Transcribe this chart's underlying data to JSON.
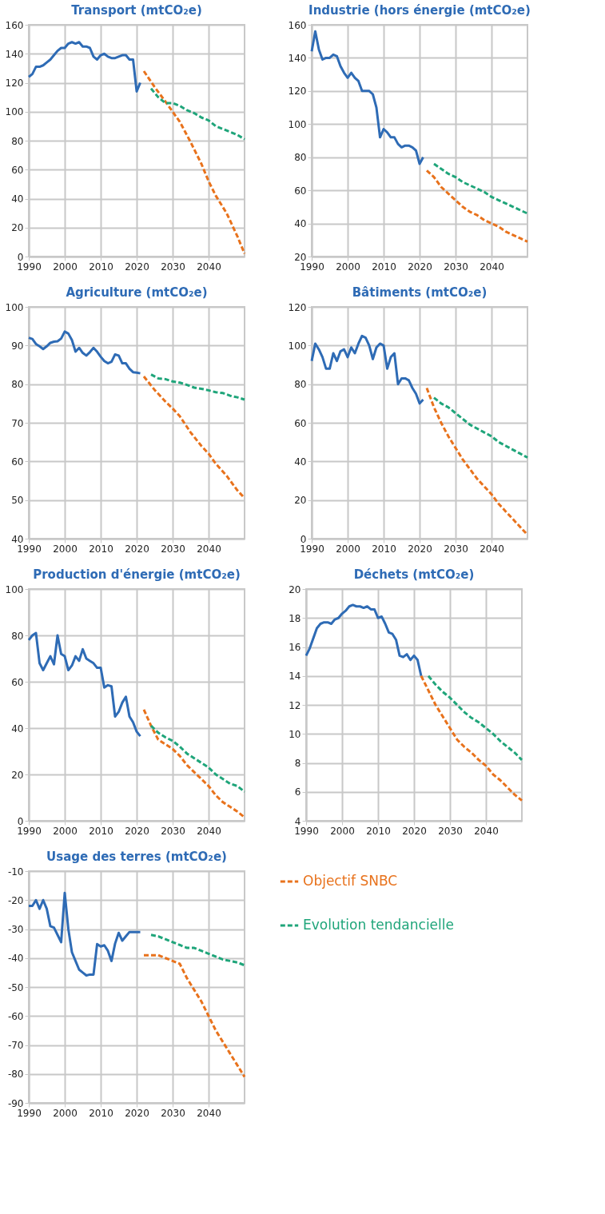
{
  "chart_data": [
    {
      "type": "line",
      "title": "Transport (mtCO₂e)",
      "xlim": [
        1990,
        2050
      ],
      "xticks": [
        1990,
        2000,
        2010,
        2020,
        2030,
        2040
      ],
      "ylim": [
        0,
        160
      ],
      "yticks": [
        0,
        20,
        40,
        60,
        80,
        100,
        120,
        140,
        160
      ],
      "grid": true,
      "series": [
        {
          "color": "#2e6bb5",
          "line_style": "solid",
          "x": [
            1990,
            1991,
            1992,
            1993,
            1994,
            1995,
            1996,
            1997,
            1998,
            1999,
            2000,
            2001,
            2002,
            2003,
            2004,
            2005,
            2006,
            2007,
            2008,
            2009,
            2010,
            2011,
            2012,
            2013,
            2014,
            2015,
            2016,
            2017,
            2018,
            2019,
            2020,
            2021
          ],
          "values": [
            124,
            126,
            131,
            131,
            132,
            134,
            136,
            139,
            142,
            144,
            144,
            147,
            148,
            147,
            148,
            145,
            145,
            144,
            138,
            136,
            139,
            140,
            138,
            137,
            137,
            138,
            139,
            139,
            136,
            136,
            114,
            120
          ]
        },
        {
          "color": "#e8721c",
          "line_style": "dashed",
          "x": [
            2022,
            2025,
            2028,
            2030,
            2032,
            2035,
            2038,
            2040,
            2042,
            2045,
            2048,
            2050
          ],
          "values": [
            128,
            117,
            107,
            100,
            93,
            79,
            64,
            52,
            42,
            30,
            14,
            2
          ]
        },
        {
          "color": "#1fa57a",
          "line_style": "dashed",
          "x": [
            2024,
            2026,
            2028,
            2030,
            2032,
            2034,
            2036,
            2038,
            2040,
            2042,
            2044,
            2046,
            2048,
            2050
          ],
          "values": [
            116,
            110,
            106,
            106,
            104,
            101,
            99,
            96,
            94,
            90,
            88,
            86,
            84,
            81
          ]
        }
      ]
    },
    {
      "type": "line",
      "title": "Industrie (hors énergie (mtCO₂e)",
      "xlim": [
        1990,
        2050
      ],
      "xticks": [
        1990,
        2000,
        2010,
        2020,
        2030,
        2040
      ],
      "ylim": [
        20,
        160
      ],
      "yticks": [
        20,
        40,
        60,
        80,
        100,
        120,
        140,
        160
      ],
      "grid": true,
      "series": [
        {
          "color": "#2e6bb5",
          "line_style": "solid",
          "x": [
            1990,
            1991,
            1992,
            1993,
            1994,
            1995,
            1996,
            1997,
            1998,
            1999,
            2000,
            2001,
            2002,
            2003,
            2004,
            2005,
            2006,
            2007,
            2008,
            2009,
            2010,
            2011,
            2012,
            2013,
            2014,
            2015,
            2016,
            2017,
            2018,
            2019,
            2020,
            2021
          ],
          "values": [
            144,
            156,
            145,
            139,
            140,
            140,
            142,
            141,
            135,
            131,
            128,
            131,
            128,
            126,
            120,
            120,
            120,
            118,
            110,
            92,
            97,
            95,
            92,
            92,
            88,
            86,
            87,
            87,
            86,
            84,
            76,
            80
          ]
        },
        {
          "color": "#e8721c",
          "line_style": "dashed",
          "x": [
            2022,
            2024,
            2026,
            2028,
            2030,
            2032,
            2034,
            2036,
            2038,
            2040,
            2042,
            2044,
            2046,
            2048,
            2050
          ],
          "values": [
            72,
            68,
            62,
            58,
            54,
            50,
            47,
            45,
            42,
            40,
            38,
            35,
            33,
            31,
            29
          ]
        },
        {
          "color": "#1fa57a",
          "line_style": "dashed",
          "x": [
            2024,
            2026,
            2028,
            2030,
            2032,
            2034,
            2036,
            2038,
            2040,
            2042,
            2044,
            2046,
            2048,
            2050
          ],
          "values": [
            76,
            73,
            70,
            68,
            65,
            63,
            61,
            59,
            56,
            54,
            52,
            50,
            48,
            46
          ]
        }
      ]
    },
    {
      "type": "line",
      "title": "Agriculture (mtCO₂e)",
      "xlim": [
        1990,
        2050
      ],
      "xticks": [
        1990,
        2000,
        2010,
        2020,
        2030,
        2040
      ],
      "ylim": [
        40,
        100
      ],
      "yticks": [
        40,
        50,
        60,
        70,
        80,
        90,
        100
      ],
      "grid": true,
      "series": [
        {
          "color": "#2e6bb5",
          "line_style": "solid",
          "x": [
            1990,
            1991,
            1992,
            1993,
            1994,
            1995,
            1996,
            1997,
            1998,
            1999,
            2000,
            2001,
            2002,
            2003,
            2004,
            2005,
            2006,
            2007,
            2008,
            2009,
            2010,
            2011,
            2012,
            2013,
            2014,
            2015,
            2016,
            2017,
            2018,
            2019,
            2020,
            2021
          ],
          "values": [
            92,
            91.7,
            90.4,
            89.8,
            89.1,
            89.8,
            90.7,
            91,
            91.1,
            91.8,
            93.6,
            93.1,
            91.4,
            88.4,
            89.4,
            88.1,
            87.4,
            88.3,
            89.4,
            88.4,
            87.1,
            86,
            85.4,
            85.8,
            87.7,
            87.4,
            85.4,
            85.4,
            84,
            83.1,
            83,
            82.8
          ]
        },
        {
          "color": "#e8721c",
          "line_style": "dashed",
          "x": [
            2022,
            2025,
            2028,
            2030,
            2032,
            2035,
            2038,
            2040,
            2042,
            2045,
            2048,
            2050
          ],
          "values": [
            82,
            78.5,
            75.5,
            73.7,
            71.7,
            67.5,
            64,
            62,
            59.4,
            56.3,
            52.5,
            50.5
          ]
        },
        {
          "color": "#1fa57a",
          "line_style": "dashed",
          "x": [
            2024,
            2026,
            2028,
            2030,
            2032,
            2034,
            2036,
            2038,
            2040,
            2042,
            2044,
            2046,
            2048,
            2050
          ],
          "values": [
            82.5,
            81.5,
            81.3,
            80.7,
            80.4,
            79.8,
            79.1,
            78.8,
            78.4,
            77.9,
            77.7,
            77,
            76.6,
            76
          ]
        }
      ]
    },
    {
      "type": "line",
      "title": "Bâtiments (mtCO₂e)",
      "xlim": [
        1990,
        2050
      ],
      "xticks": [
        1990,
        2000,
        2010,
        2020,
        2030,
        2040
      ],
      "ylim": [
        0,
        120
      ],
      "yticks": [
        0,
        20,
        40,
        60,
        80,
        100,
        120
      ],
      "grid": true,
      "series": [
        {
          "color": "#2e6bb5",
          "line_style": "solid",
          "x": [
            1990,
            1991,
            1992,
            1993,
            1994,
            1995,
            1996,
            1997,
            1998,
            1999,
            2000,
            2001,
            2002,
            2003,
            2004,
            2005,
            2006,
            2007,
            2008,
            2009,
            2010,
            2011,
            2012,
            2013,
            2014,
            2015,
            2016,
            2017,
            2018,
            2019,
            2020,
            2021
          ],
          "values": [
            92,
            101,
            98,
            94,
            88,
            88,
            96,
            92,
            97,
            98,
            94,
            99,
            96,
            101,
            105,
            104,
            100,
            93,
            99,
            101,
            100,
            88,
            94,
            96,
            80,
            83,
            83,
            82,
            78,
            75,
            70,
            72
          ]
        },
        {
          "color": "#e8721c",
          "line_style": "dashed",
          "x": [
            2022,
            2024,
            2026,
            2028,
            2030,
            2032,
            2034,
            2036,
            2038,
            2040,
            2042,
            2044,
            2046,
            2048,
            2050
          ],
          "values": [
            78,
            68,
            60,
            53,
            47,
            41,
            36,
            31,
            27,
            23,
            18,
            14,
            10,
            6,
            2
          ]
        },
        {
          "color": "#1fa57a",
          "line_style": "dashed",
          "x": [
            2024,
            2026,
            2028,
            2030,
            2032,
            2034,
            2036,
            2038,
            2040,
            2042,
            2044,
            2046,
            2048,
            2050
          ],
          "values": [
            73,
            70,
            68,
            65,
            62,
            59,
            57,
            55,
            53,
            50,
            48,
            46,
            44,
            42
          ]
        }
      ]
    },
    {
      "type": "line",
      "title": "Production d'énergie (mtCO₂e)",
      "xlim": [
        1990,
        2050
      ],
      "xticks": [
        1990,
        2000,
        2010,
        2020,
        2030,
        2040
      ],
      "ylim": [
        0,
        100
      ],
      "yticks": [
        0,
        20,
        40,
        60,
        80,
        100
      ],
      "grid": true,
      "series": [
        {
          "color": "#2e6bb5",
          "line_style": "solid",
          "x": [
            1990,
            1991,
            1992,
            1993,
            1994,
            1995,
            1996,
            1997,
            1998,
            1999,
            2000,
            2001,
            2002,
            2003,
            2004,
            2005,
            2006,
            2007,
            2008,
            2009,
            2010,
            2011,
            2012,
            2013,
            2014,
            2015,
            2016,
            2017,
            2018,
            2019,
            2020,
            2021
          ],
          "values": [
            78,
            80,
            81,
            68,
            65,
            68,
            71,
            67.5,
            80,
            72,
            71,
            65,
            67,
            71,
            69,
            74,
            70,
            69,
            68,
            66,
            66,
            57.5,
            58.5,
            58,
            45,
            47,
            51,
            53.5,
            45,
            42.5,
            38.5,
            36.5
          ]
        },
        {
          "color": "#e8721c",
          "line_style": "dashed",
          "x": [
            2022,
            2024,
            2026,
            2028,
            2030,
            2032,
            2034,
            2036,
            2038,
            2040,
            2042,
            2044,
            2046,
            2048,
            2050
          ],
          "values": [
            48,
            41,
            35,
            33,
            31,
            28,
            24,
            21,
            18,
            15,
            11,
            8,
            6,
            4,
            1.5
          ]
        },
        {
          "color": "#1fa57a",
          "line_style": "dashed",
          "x": [
            2024,
            2026,
            2028,
            2030,
            2032,
            2034,
            2036,
            2038,
            2040,
            2042,
            2044,
            2046,
            2048,
            2050
          ],
          "values": [
            41,
            38,
            36,
            34.5,
            32,
            29,
            27,
            25,
            23,
            20,
            18,
            16,
            15,
            12.5
          ]
        }
      ]
    },
    {
      "type": "line",
      "title": "Déchets (mtCO₂e)",
      "xlim": [
        1990,
        2050
      ],
      "xticks": [
        1990,
        2000,
        2010,
        2020,
        2030,
        2040
      ],
      "ylim": [
        4,
        20
      ],
      "yticks": [
        4,
        6,
        8,
        10,
        12,
        14,
        16,
        18,
        20
      ],
      "grid": true,
      "series": [
        {
          "color": "#2e6bb5",
          "line_style": "solid",
          "x": [
            1990,
            1991,
            1992,
            1993,
            1994,
            1995,
            1996,
            1997,
            1998,
            1999,
            2000,
            2001,
            2002,
            2003,
            2004,
            2005,
            2006,
            2007,
            2008,
            2009,
            2010,
            2011,
            2012,
            2013,
            2014,
            2015,
            2016,
            2017,
            2018,
            2019,
            2020,
            2021,
            2022
          ],
          "values": [
            15.4,
            15.9,
            16.6,
            17.3,
            17.6,
            17.7,
            17.7,
            17.6,
            17.9,
            18,
            18.3,
            18.5,
            18.8,
            18.9,
            18.8,
            18.8,
            18.7,
            18.8,
            18.6,
            18.6,
            18,
            18.1,
            17.6,
            17,
            16.9,
            16.5,
            15.4,
            15.3,
            15.5,
            15.1,
            15.4,
            15.1,
            14
          ]
        },
        {
          "color": "#e8721c",
          "line_style": "dashed",
          "x": [
            2022,
            2024,
            2026,
            2028,
            2030,
            2032,
            2034,
            2036,
            2038,
            2040,
            2042,
            2044,
            2046,
            2048,
            2050
          ],
          "values": [
            14,
            13,
            12,
            11.2,
            10.4,
            9.6,
            9.1,
            8.7,
            8.2,
            7.8,
            7.2,
            6.8,
            6.3,
            5.8,
            5.4
          ]
        },
        {
          "color": "#1fa57a",
          "line_style": "dashed",
          "x": [
            2024,
            2026,
            2028,
            2030,
            2032,
            2034,
            2036,
            2038,
            2040,
            2042,
            2044,
            2046,
            2048,
            2050
          ],
          "values": [
            14,
            13.4,
            12.9,
            12.5,
            12,
            11.5,
            11.1,
            10.8,
            10.4,
            10,
            9.5,
            9.1,
            8.7,
            8.2
          ]
        }
      ]
    },
    {
      "type": "line",
      "title": "Usage des terres (mtCO₂e)",
      "xlim": [
        1990,
        2050
      ],
      "xticks": [
        1990,
        2000,
        2010,
        2020,
        2030,
        2040
      ],
      "ylim": [
        -90,
        -10
      ],
      "yticks": [
        -90,
        -80,
        -70,
        -60,
        -50,
        -40,
        -30,
        -20,
        -10
      ],
      "grid": true,
      "legend": "right",
      "series": [
        {
          "color": "#2e6bb5",
          "line_style": "solid",
          "x": [
            1990,
            1991,
            1992,
            1993,
            1994,
            1995,
            1996,
            1997,
            1998,
            1999,
            2000,
            2001,
            2002,
            2003,
            2004,
            2005,
            2006,
            2007,
            2008,
            2009,
            2010,
            2011,
            2012,
            2013,
            2014,
            2015,
            2016,
            2017,
            2018,
            2019,
            2020,
            2021
          ],
          "values": [
            -22,
            -22,
            -20,
            -23,
            -20,
            -23,
            -29,
            -29.5,
            -32,
            -34.5,
            -17.5,
            -30,
            -38,
            -41,
            -44,
            -45,
            -46,
            -45.7,
            -45.7,
            -35.2,
            -36,
            -35.6,
            -37.5,
            -41,
            -35,
            -31.3,
            -34,
            -32.5,
            -31,
            -31,
            -31,
            -31
          ]
        },
        {
          "name": "Objectif SNBC",
          "color": "#e8721c",
          "line_style": "dashed",
          "x": [
            2022,
            2024,
            2026,
            2028,
            2030,
            2032,
            2034,
            2036,
            2038,
            2040,
            2042,
            2044,
            2046,
            2048,
            2050
          ],
          "values": [
            -39,
            -39,
            -39,
            -40,
            -41,
            -42,
            -47,
            -51,
            -55,
            -60,
            -65,
            -69,
            -73,
            -77,
            -81
          ]
        },
        {
          "name": "Evolution tendancielle",
          "color": "#1fa57a",
          "line_style": "dashed",
          "x": [
            2024,
            2026,
            2028,
            2030,
            2032,
            2034,
            2036,
            2038,
            2040,
            2042,
            2044,
            2046,
            2048,
            2050
          ],
          "values": [
            -32,
            -32.5,
            -33.5,
            -34.5,
            -35.5,
            -36.5,
            -36.5,
            -37.5,
            -38.5,
            -39.5,
            -40.5,
            -41,
            -41.5,
            -42.5
          ]
        }
      ]
    }
  ]
}
